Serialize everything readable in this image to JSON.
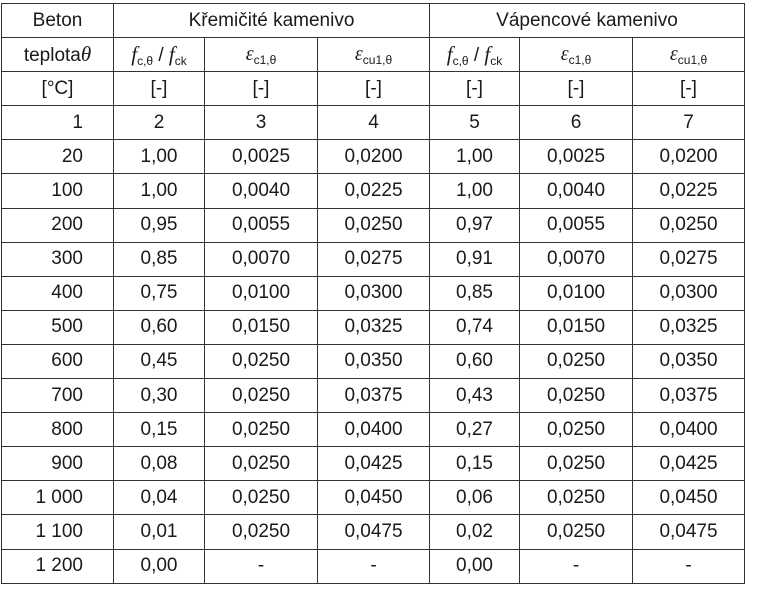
{
  "header": {
    "beton": "Beton",
    "group1": "Křemičité kamenivo",
    "group2": "Vápencové kamenivo"
  },
  "symbols": {
    "teplota_word": "teplota",
    "theta": "θ",
    "f": "f",
    "fc_sub": "c,θ",
    "slash": " / ",
    "fck_sub": "ck",
    "eps": "ε",
    "ec1_sub": "c1,θ",
    "ecu1_sub": "cu1,θ"
  },
  "units": [
    "[°C]",
    "[-]",
    "[-]",
    "[-]",
    "[-]",
    "[-]",
    "[-]"
  ],
  "col_numbers": [
    "1",
    "2",
    "3",
    "4",
    "5",
    "6",
    "7"
  ],
  "rows": [
    [
      "20",
      "1,00",
      "0,0025",
      "0,0200",
      "1,00",
      "0,0025",
      "0,0200"
    ],
    [
      "100",
      "1,00",
      "0,0040",
      "0,0225",
      "1,00",
      "0,0040",
      "0,0225"
    ],
    [
      "200",
      "0,95",
      "0,0055",
      "0,0250",
      "0,97",
      "0,0055",
      "0,0250"
    ],
    [
      "300",
      "0,85",
      "0,0070",
      "0,0275",
      "0,91",
      "0,0070",
      "0,0275"
    ],
    [
      "400",
      "0,75",
      "0,0100",
      "0,0300",
      "0,85",
      "0,0100",
      "0,0300"
    ],
    [
      "500",
      "0,60",
      "0,0150",
      "0,0325",
      "0,74",
      "0,0150",
      "0,0325"
    ],
    [
      "600",
      "0,45",
      "0,0250",
      "0,0350",
      "0,60",
      "0,0250",
      "0,0350"
    ],
    [
      "700",
      "0,30",
      "0,0250",
      "0,0375",
      "0,43",
      "0,0250",
      "0,0375"
    ],
    [
      "800",
      "0,15",
      "0,0250",
      "0,0400",
      "0,27",
      "0,0250",
      "0,0400"
    ],
    [
      "900",
      "0,08",
      "0,0250",
      "0,0425",
      "0,15",
      "0,0250",
      "0,0425"
    ],
    [
      "1 000",
      "0,04",
      "0,0250",
      "0,0450",
      "0,06",
      "0,0250",
      "0,0450"
    ],
    [
      "1 100",
      "0,01",
      "0,0250",
      "0,0475",
      "0,02",
      "0,0250",
      "0,0475"
    ],
    [
      "1 200",
      "0,00",
      "-",
      "-",
      "0,00",
      "-",
      "-"
    ]
  ]
}
